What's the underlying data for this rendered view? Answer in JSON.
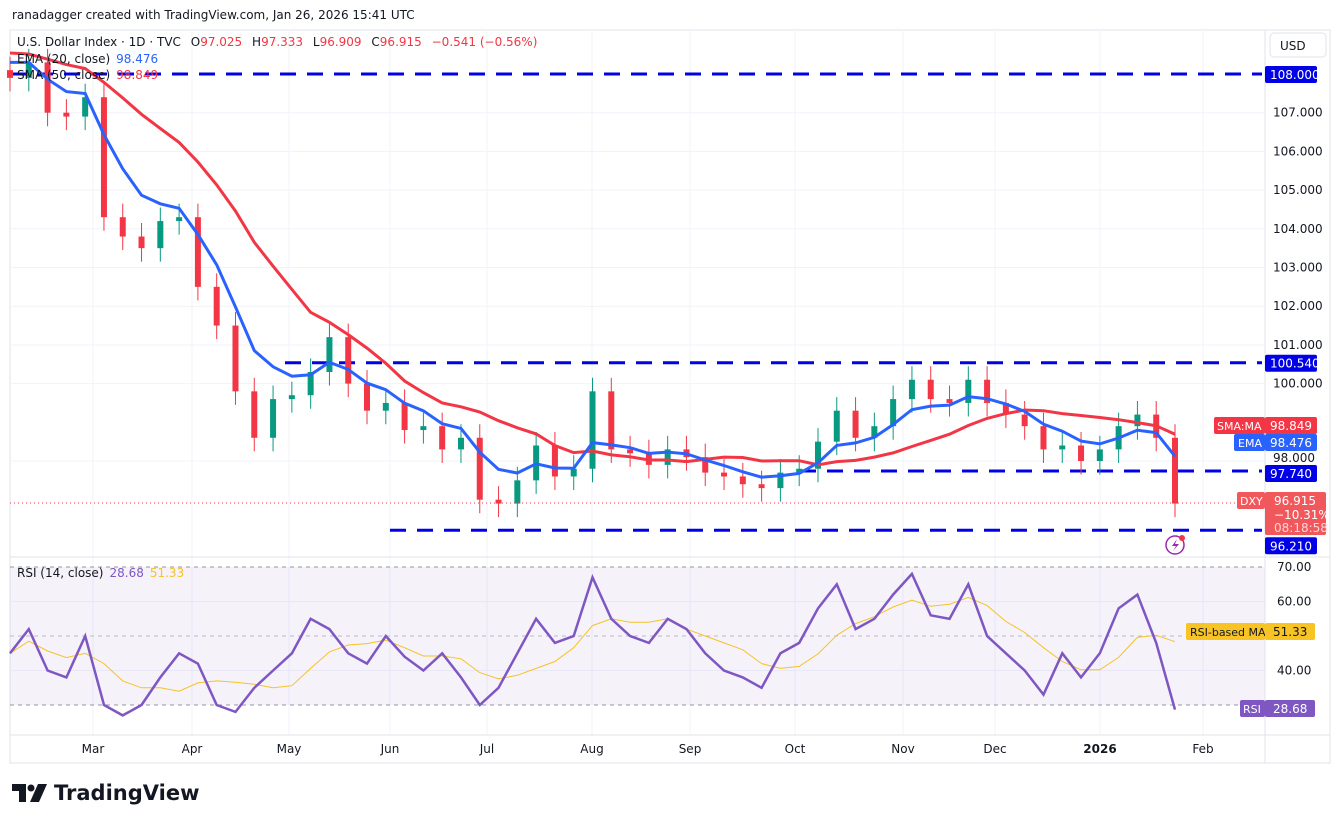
{
  "credit": "ranadagger created with TradingView.com, Jan 26, 2026 15:41 UTC",
  "logo_text": "TradingView",
  "legend": {
    "symbol": "U.S. Dollar Index · 1D · TVC",
    "o_label": "O",
    "o": "97.025",
    "h_label": "H",
    "h": "97.333",
    "l_label": "L",
    "l": "96.909",
    "c_label": "C",
    "c": "96.915",
    "change": "−0.541 (−0.56%)",
    "ema_label": "EMA (20, close)",
    "ema_value": "98.476",
    "sma_label": "SMA (50, close)",
    "sma_value": "98.849",
    "rsi_label": "RSI (14, close)",
    "rsi_value": "28.68",
    "rsi_ma_value": "51.33"
  },
  "currency": "USD",
  "badges": {
    "sma_name": "SMA:MA",
    "sma_value": "98.849",
    "ema_name": "EMA",
    "ema_value": "98.476",
    "dxy_name": "DXY",
    "dxy_price": "96.915",
    "dxy_change": "−10.31%",
    "dxy_countdown": "08:18:58",
    "rsi_ma_name": "RSI-based MA",
    "rsi_ma_value": "51.33",
    "rsi_name": "RSI",
    "rsi_value": "28.68"
  },
  "colors": {
    "up": "#089981",
    "down": "#f23645",
    "ema": "#2962ff",
    "sma": "#f23645",
    "level": "#0000e6",
    "rsi": "#7e57c2",
    "rsi_ma": "#f7c325"
  },
  "chart_data": {
    "type": "candlestick",
    "title": "U.S. Dollar Index · 1D · TVC",
    "ylim": [
      95.8,
      109.0
    ],
    "rsi_ylim": [
      23,
      72
    ],
    "x_ticks": [
      "Mar",
      "Apr",
      "May",
      "Jun",
      "Jul",
      "Aug",
      "Sep",
      "Oct",
      "Nov",
      "Dec",
      "2026",
      "Feb"
    ],
    "y_ticks": [
      "107.000",
      "106.000",
      "105.000",
      "104.000",
      "103.000",
      "102.000",
      "101.000",
      "100.000",
      "98.000"
    ],
    "rsi_ticks": [
      "70.00",
      "60.00",
      "40.00"
    ],
    "levels": [
      {
        "label": "108.000",
        "value": 108.0
      },
      {
        "label": "100.540",
        "value": 100.54
      },
      {
        "label": "97.740",
        "value": 97.74
      },
      {
        "label": "96.210",
        "value": 96.21
      }
    ],
    "closes": [
      107.9,
      108.3,
      107.0,
      106.9,
      107.4,
      104.3,
      103.8,
      103.5,
      104.2,
      104.3,
      102.5,
      101.5,
      99.8,
      98.6,
      99.6,
      99.7,
      100.3,
      101.2,
      100.0,
      99.3,
      99.5,
      98.8,
      98.9,
      98.3,
      98.6,
      97.0,
      96.9,
      97.5,
      98.4,
      97.6,
      97.8,
      99.8,
      98.3,
      98.2,
      97.9,
      98.3,
      98.1,
      97.7,
      97.6,
      97.4,
      97.3,
      97.7,
      97.8,
      98.5,
      99.3,
      98.6,
      98.9,
      99.6,
      100.1,
      99.6,
      99.5,
      100.1,
      99.5,
      99.2,
      98.9,
      98.3,
      98.4,
      98.0,
      98.3,
      98.9,
      99.2,
      98.6,
      96.9
    ],
    "rsi": [
      45,
      52,
      40,
      38,
      50,
      30,
      27,
      30,
      38,
      45,
      42,
      30,
      28,
      35,
      40,
      45,
      55,
      52,
      45,
      42,
      50,
      44,
      40,
      45,
      38,
      30,
      35,
      45,
      55,
      48,
      50,
      67,
      55,
      50,
      48,
      55,
      52,
      45,
      40,
      38,
      35,
      45,
      48,
      58,
      65,
      52,
      55,
      62,
      68,
      56,
      55,
      65,
      50,
      45,
      40,
      33,
      45,
      38,
      45,
      58,
      62,
      48,
      28.68
    ],
    "ema_period_points": 5,
    "sma_period_points": 12
  }
}
